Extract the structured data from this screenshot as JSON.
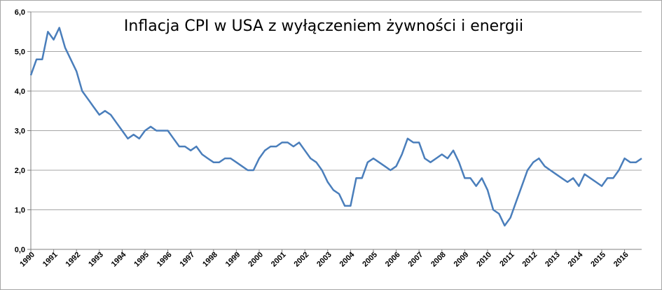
{
  "chart_data": {
    "type": "line",
    "title": "Inflacja CPI w USA z wyłączeniem żywności i energii",
    "xlabel": "",
    "ylabel": "",
    "ylim": [
      0,
      6
    ],
    "y_ticks": [
      "0,0",
      "1,0",
      "2,0",
      "3,0",
      "4,0",
      "5,0",
      "6,0"
    ],
    "x_ticks": [
      "1990",
      "1991",
      "1992",
      "1993",
      "1994",
      "1995",
      "1996",
      "1997",
      "1998",
      "1999",
      "2000",
      "2001",
      "2002",
      "2003",
      "2004",
      "2005",
      "2006",
      "2007",
      "2008",
      "2009",
      "2010",
      "2011",
      "2012",
      "2013",
      "2014",
      "2015",
      "2016"
    ],
    "x_range": [
      1990,
      2016.75
    ],
    "grid": true,
    "legend": "none",
    "line_color": "#4a7ebb",
    "series": [
      {
        "x": [
          1990.0,
          1990.25,
          1990.5,
          1990.75,
          1991.0,
          1991.25,
          1991.5,
          1991.75,
          1992.0,
          1992.25,
          1992.5,
          1992.75,
          1993.0,
          1993.25,
          1993.5,
          1993.75,
          1994.0,
          1994.25,
          1994.5,
          1994.75,
          1995.0,
          1995.25,
          1995.5,
          1995.75,
          1996.0,
          1996.25,
          1996.5,
          1996.75,
          1997.0,
          1997.25,
          1997.5,
          1997.75,
          1998.0,
          1998.25,
          1998.5,
          1998.75,
          1999.0,
          1999.25,
          1999.5,
          1999.75,
          2000.0,
          2000.25,
          2000.5,
          2000.75,
          2001.0,
          2001.25,
          2001.5,
          2001.75,
          2002.0,
          2002.25,
          2002.5,
          2002.75,
          2003.0,
          2003.25,
          2003.5,
          2003.75,
          2004.0,
          2004.25,
          2004.5,
          2004.75,
          2005.0,
          2005.25,
          2005.5,
          2005.75,
          2006.0,
          2006.25,
          2006.5,
          2006.75,
          2007.0,
          2007.25,
          2007.5,
          2007.75,
          2008.0,
          2008.25,
          2008.5,
          2008.75,
          2009.0,
          2009.25,
          2009.5,
          2009.75,
          2010.0,
          2010.25,
          2010.5,
          2010.75,
          2011.0,
          2011.25,
          2011.5,
          2011.75,
          2012.0,
          2012.25,
          2012.5,
          2012.75,
          2013.0,
          2013.25,
          2013.5,
          2013.75,
          2014.0,
          2014.25,
          2014.5,
          2014.75,
          2015.0,
          2015.25,
          2015.5,
          2015.75,
          2016.0,
          2016.25,
          2016.5,
          2016.75
        ],
        "values": [
          4.4,
          4.8,
          4.8,
          5.5,
          5.3,
          5.6,
          5.1,
          4.8,
          4.5,
          4.0,
          3.8,
          3.6,
          3.4,
          3.5,
          3.4,
          3.2,
          3.0,
          2.8,
          2.9,
          2.8,
          3.0,
          3.1,
          3.0,
          3.0,
          3.0,
          2.8,
          2.6,
          2.6,
          2.5,
          2.6,
          2.4,
          2.3,
          2.2,
          2.2,
          2.3,
          2.3,
          2.2,
          2.1,
          2.0,
          2.0,
          2.3,
          2.5,
          2.6,
          2.6,
          2.7,
          2.7,
          2.6,
          2.7,
          2.5,
          2.3,
          2.2,
          2.0,
          1.7,
          1.5,
          1.4,
          1.1,
          1.1,
          1.8,
          1.8,
          2.2,
          2.3,
          2.2,
          2.1,
          2.0,
          2.1,
          2.4,
          2.8,
          2.7,
          2.7,
          2.3,
          2.2,
          2.3,
          2.4,
          2.3,
          2.5,
          2.2,
          1.8,
          1.8,
          1.6,
          1.8,
          1.5,
          1.0,
          0.9,
          0.6,
          0.8,
          1.2,
          1.6,
          2.0,
          2.2,
          2.3,
          2.1,
          2.0,
          1.9,
          1.8,
          1.7,
          1.8,
          1.6,
          1.9,
          1.8,
          1.7,
          1.6,
          1.8,
          1.8,
          2.0,
          2.3,
          2.2,
          2.2,
          2.3
        ]
      }
    ]
  }
}
